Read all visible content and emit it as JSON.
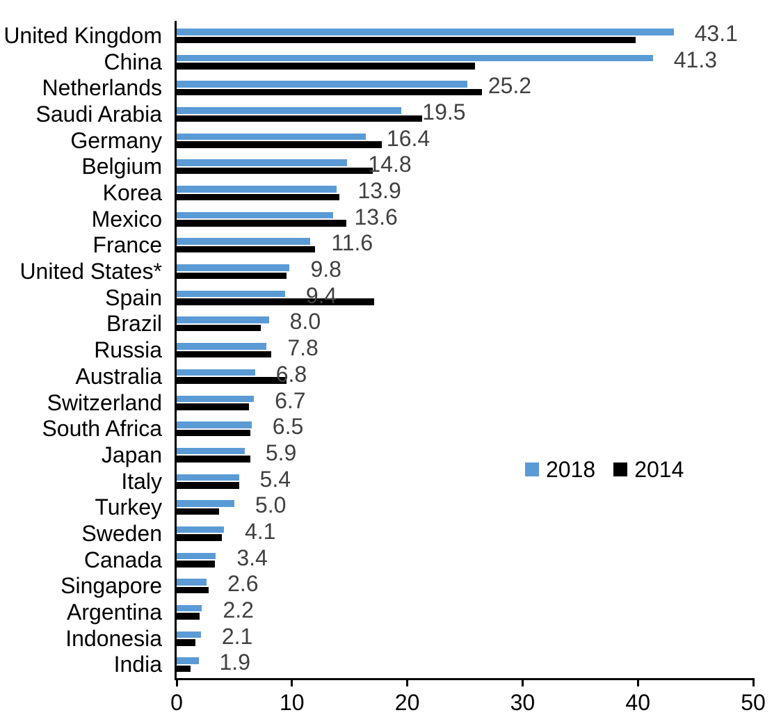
{
  "chart_data": {
    "type": "bar",
    "orientation": "horizontal",
    "title": "",
    "xlabel": "",
    "ylabel": "",
    "xlim": [
      0,
      50
    ],
    "x_ticks": [
      0,
      10,
      20,
      30,
      40,
      50
    ],
    "grid": "off",
    "legend_position": "center-right",
    "value_label_color": "#404040",
    "axis_color": "#000000",
    "categories": [
      "United Kingdom",
      "China",
      "Netherlands",
      "Saudi Arabia",
      "Germany",
      "Belgium",
      "Korea",
      "Mexico",
      "France",
      "United States*",
      "Spain",
      "Brazil",
      "Russia",
      "Australia",
      "Switzerland",
      "South Africa",
      "Japan",
      "Italy",
      "Turkey",
      "Sweden",
      "Canada",
      "Singapore",
      "Argentina",
      "Indonesia",
      "India"
    ],
    "series": [
      {
        "name": "2018",
        "color": "#5B9BD5",
        "values_labeled": true,
        "values": [
          43.1,
          41.3,
          25.2,
          19.5,
          16.4,
          14.8,
          13.9,
          13.6,
          11.6,
          9.8,
          9.4,
          8.0,
          7.8,
          6.8,
          6.7,
          6.5,
          5.9,
          5.4,
          5.0,
          4.1,
          3.4,
          2.6,
          2.2,
          2.1,
          1.9
        ]
      },
      {
        "name": "2014",
        "color": "#000000",
        "values_labeled": false,
        "values": [
          39.8,
          25.9,
          26.5,
          21.3,
          17.8,
          17.0,
          14.1,
          14.7,
          12.0,
          9.5,
          17.1,
          7.3,
          8.2,
          9.5,
          6.3,
          6.4,
          6.4,
          5.4,
          3.7,
          3.9,
          3.3,
          2.8,
          2.0,
          1.6,
          1.2
        ]
      }
    ]
  }
}
